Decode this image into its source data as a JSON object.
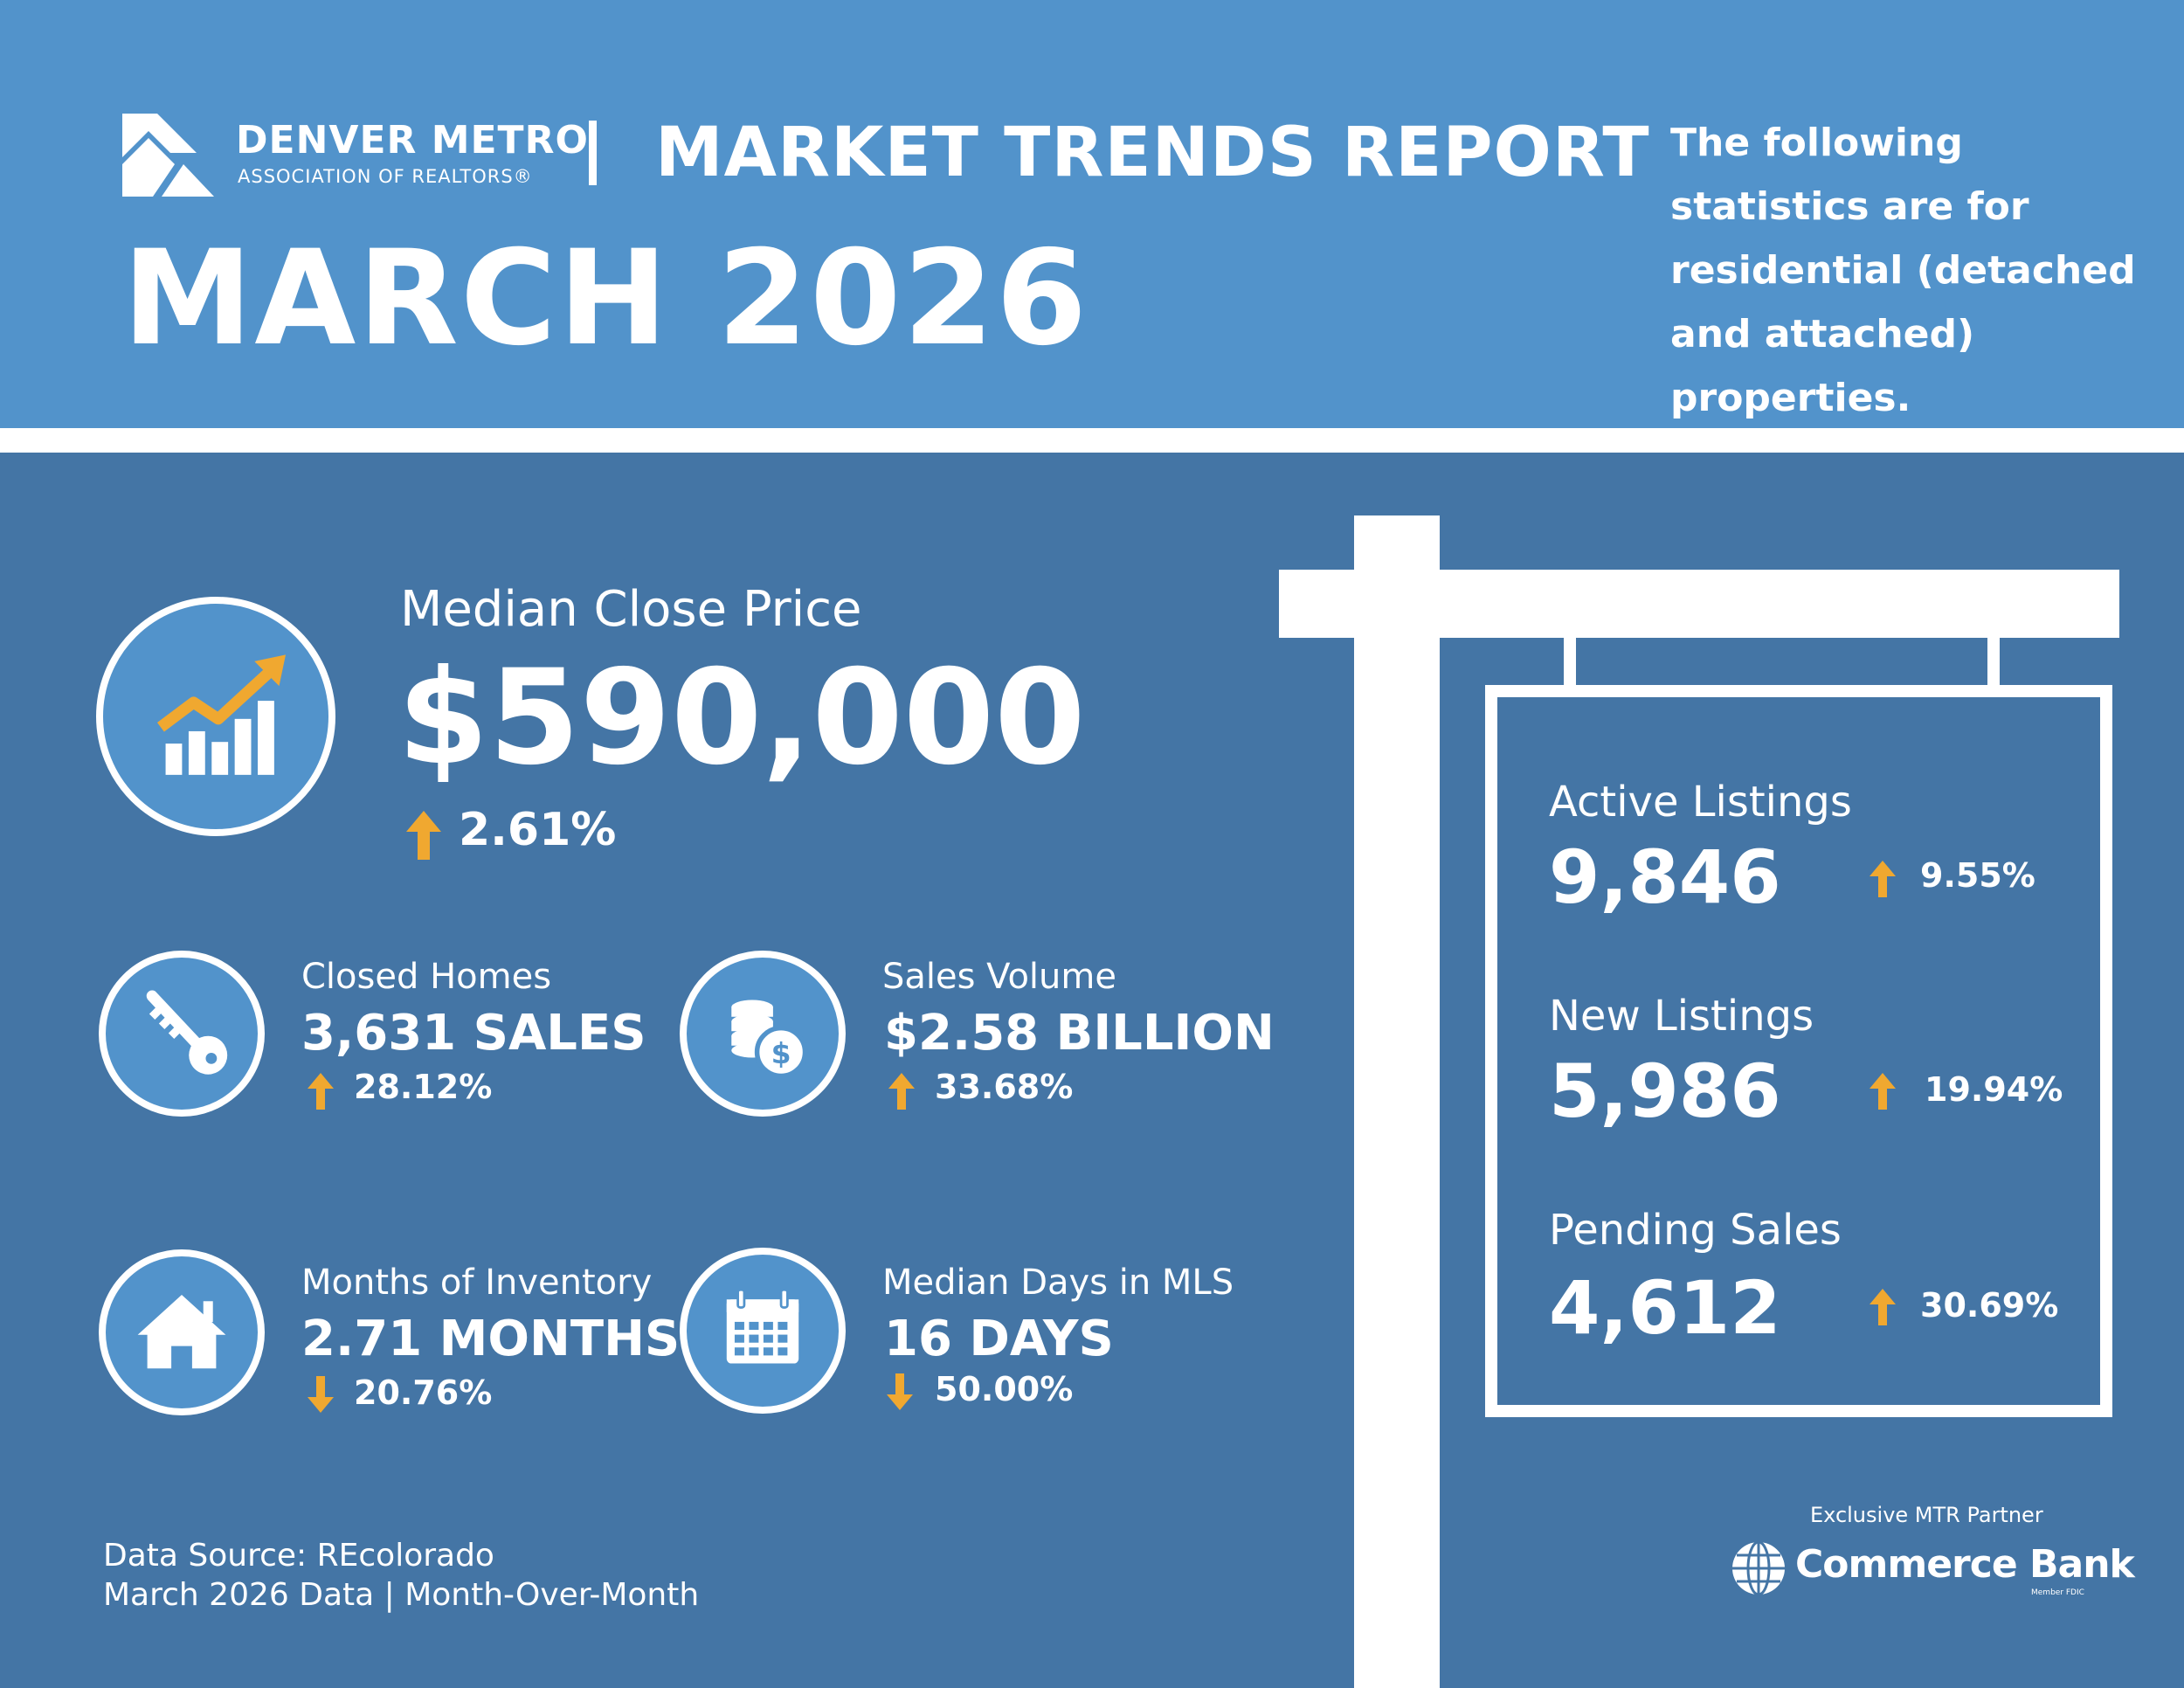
{
  "header": {
    "org_name": "DENVER METRO",
    "org_sub": "ASSOCIATION OF REALTORS®",
    "report_title": "MARKET TRENDS REPORT",
    "month_title": "MARCH 2026",
    "intro_text": "The following statistics are for residential (detached and attached) properties."
  },
  "median_close_price": {
    "label": "Median Close Price",
    "value": "$590,000",
    "change": "2.61%",
    "direction": "up",
    "icon": "growth-chart-icon"
  },
  "stats": [
    {
      "key": "closed-homes",
      "label": "Closed Homes",
      "value": "3,631 SALES",
      "change": "28.12%",
      "direction": "up",
      "icon": "key-icon"
    },
    {
      "key": "sales-volume",
      "label": "Sales Volume",
      "value": "$2.58 BILLION",
      "change": "33.68%",
      "direction": "up",
      "icon": "coins-icon"
    },
    {
      "key": "months-inventory",
      "label": "Months of Inventory",
      "value": "2.71 MONTHS",
      "change": "20.76%",
      "direction": "down",
      "icon": "house-icon"
    },
    {
      "key": "days-in-mls",
      "label": "Median Days in MLS",
      "value": "16 DAYS",
      "change": "50.00%",
      "direction": "down",
      "icon": "calendar-icon"
    }
  ],
  "sign": {
    "items": [
      {
        "label": "Active Listings",
        "value": "9,846",
        "change": "9.55%",
        "direction": "up"
      },
      {
        "label": "New Listings",
        "value": "5,986",
        "change": "19.94%",
        "direction": "up"
      },
      {
        "label": "Pending Sales",
        "value": "4,612",
        "change": "30.69%",
        "direction": "up"
      }
    ]
  },
  "footer": {
    "source": "Data Source: REcolorado",
    "period": "March 2026 Data | Month-Over-Month"
  },
  "partner": {
    "label": "Exclusive MTR Partner",
    "name": "Commerce Bank",
    "sub": "Member FDIC"
  },
  "colors": {
    "header_bg": "#5293cb",
    "main_bg": "#4475a5",
    "accent_arrow": "#f0a830",
    "text": "#ffffff"
  }
}
